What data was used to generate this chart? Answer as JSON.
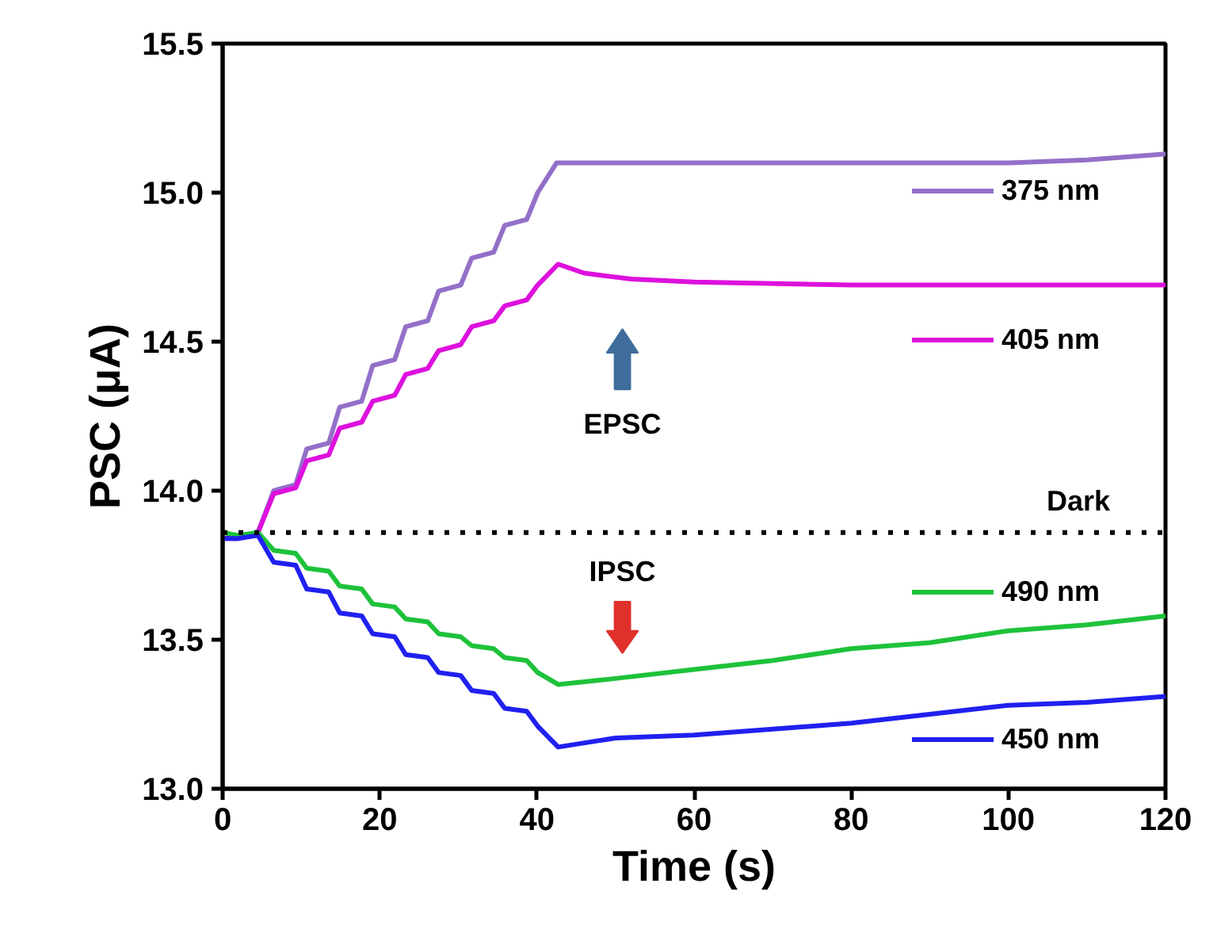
{
  "chart_data": {
    "type": "line",
    "xlabel": "Time (s)",
    "ylabel": "PSC (μA)",
    "xlim": [
      0,
      120
    ],
    "ylim": [
      13.0,
      15.5
    ],
    "xticks": [
      0,
      20,
      40,
      60,
      80,
      100,
      120
    ],
    "yticks": [
      {
        "value": 13,
        "label": "13.0"
      },
      13.5,
      {
        "value": 14,
        "label": "14.0"
      },
      14.5,
      {
        "value": 15,
        "label": "15.0"
      },
      15.5
    ],
    "grid": false,
    "legend": "right",
    "line_style": "solid",
    "marker": "none",
    "ref_lines": [
      {
        "axis": "y",
        "value": 13.86,
        "label": "Dark",
        "line_style": "dotted",
        "color": "#000000"
      }
    ],
    "annotations": [
      "EPSC",
      "IPSC"
    ],
    "series": [
      {
        "name": "375 nm",
        "color": "#9370c8",
        "x": [
          0,
          2,
          4.5,
          6.5,
          9.3,
          10.7,
          13.5,
          14.9,
          17.7,
          19.1,
          21.9,
          23.3,
          26.1,
          27.5,
          30.3,
          31.7,
          34.5,
          35.9,
          38.7,
          40.1,
          42.5,
          45,
          60,
          80,
          100,
          110,
          120
        ],
        "values": [
          13.84,
          13.84,
          13.86,
          14.0,
          14.02,
          14.14,
          14.16,
          14.28,
          14.3,
          14.42,
          14.44,
          14.55,
          14.57,
          14.67,
          14.69,
          14.78,
          14.8,
          14.89,
          14.91,
          15.0,
          15.1,
          15.1,
          15.1,
          15.1,
          15.1,
          15.11,
          15.13
        ]
      },
      {
        "name": "405 nm",
        "color": "#dd11dd",
        "x": [
          0,
          2,
          4.5,
          6.5,
          9.3,
          10.7,
          13.5,
          14.9,
          17.7,
          19.1,
          21.9,
          23.3,
          26.1,
          27.5,
          30.3,
          31.7,
          34.5,
          35.9,
          38.7,
          40.1,
          42.7,
          46,
          52,
          60,
          80,
          100,
          120
        ],
        "values": [
          13.84,
          13.84,
          13.86,
          13.99,
          14.01,
          14.1,
          14.12,
          14.21,
          14.23,
          14.3,
          14.32,
          14.39,
          14.41,
          14.47,
          14.49,
          14.55,
          14.57,
          14.62,
          14.64,
          14.69,
          14.76,
          14.73,
          14.71,
          14.7,
          14.69,
          14.69,
          14.69
        ]
      },
      {
        "name": "490 nm",
        "color": "#1ec23a",
        "x": [
          0,
          2,
          4.5,
          6.5,
          9.3,
          10.7,
          13.5,
          14.9,
          17.7,
          19.1,
          21.9,
          23.3,
          26.1,
          27.5,
          30.3,
          31.7,
          34.5,
          35.9,
          38.7,
          40.1,
          42.7,
          50,
          60,
          70,
          80,
          90,
          100,
          110,
          120
        ],
        "values": [
          13.86,
          13.85,
          13.86,
          13.8,
          13.79,
          13.74,
          13.73,
          13.68,
          13.67,
          13.62,
          13.61,
          13.57,
          13.56,
          13.52,
          13.51,
          13.48,
          13.47,
          13.44,
          13.43,
          13.39,
          13.35,
          13.37,
          13.4,
          13.43,
          13.47,
          13.49,
          13.53,
          13.55,
          13.58
        ]
      },
      {
        "name": "450 nm",
        "color": "#2020f0",
        "x": [
          0,
          2,
          4.5,
          6.5,
          9.3,
          10.7,
          13.5,
          14.9,
          17.7,
          19.1,
          21.9,
          23.3,
          26.1,
          27.5,
          30.3,
          31.7,
          34.5,
          35.9,
          38.7,
          40.1,
          42.7,
          50,
          60,
          70,
          80,
          90,
          100,
          110,
          120
        ],
        "values": [
          13.84,
          13.84,
          13.85,
          13.76,
          13.75,
          13.67,
          13.66,
          13.59,
          13.58,
          13.52,
          13.51,
          13.45,
          13.44,
          13.39,
          13.38,
          13.33,
          13.32,
          13.27,
          13.26,
          13.21,
          13.14,
          13.17,
          13.18,
          13.2,
          13.22,
          13.25,
          13.28,
          13.29,
          13.31
        ]
      }
    ]
  }
}
